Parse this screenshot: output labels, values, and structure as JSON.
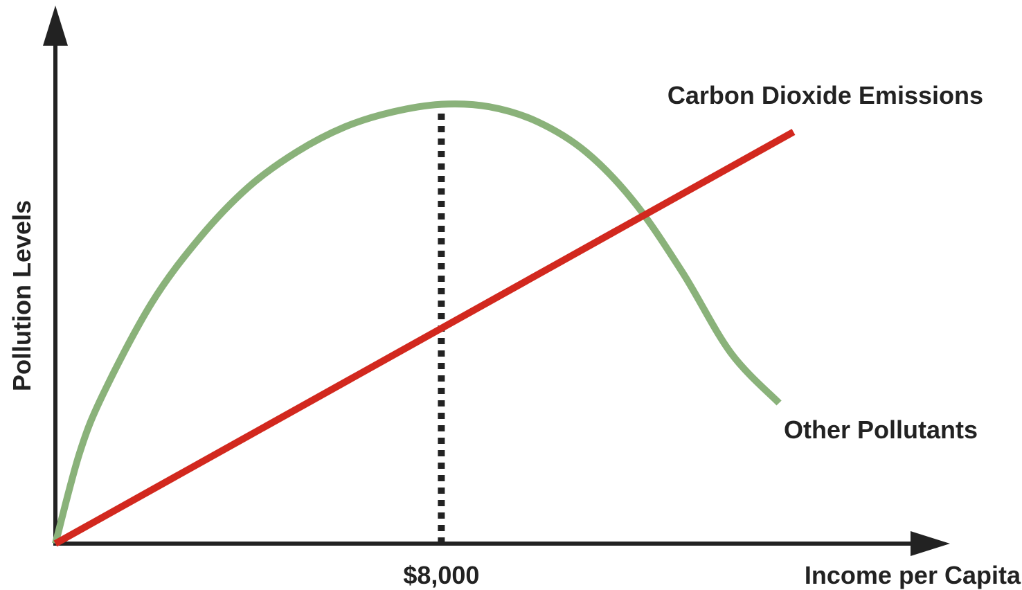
{
  "chart_data": {
    "type": "line",
    "title": "",
    "xlabel": "Income per Capita",
    "ylabel": "Pollution Levels",
    "x_tick_labels": [
      {
        "value": 8000,
        "label": "$8,000"
      }
    ],
    "xlim": [
      0,
      15300
    ],
    "ylim": [
      0,
      10
    ],
    "grid": false,
    "legend": "direct labels on lines",
    "reference_line": {
      "x": 8000,
      "style": "dotted",
      "color": "#222222"
    },
    "series": [
      {
        "name": "Carbon Dioxide Emissions",
        "color": "#d2281e",
        "x": [
          0,
          15300
        ],
        "y": [
          0,
          8.2
        ]
      },
      {
        "name": "Other Pollutants",
        "color": "#8ab27a",
        "x": [
          0,
          500,
          1000,
          2000,
          3000,
          4000,
          5000,
          6000,
          7000,
          8000,
          9000,
          10000,
          11000,
          12000,
          13000,
          14000,
          15000
        ],
        "y": [
          0,
          1.8,
          3.0,
          4.8,
          6.1,
          7.1,
          7.8,
          8.3,
          8.6,
          8.75,
          8.7,
          8.4,
          7.8,
          6.8,
          5.4,
          3.8,
          2.8
        ]
      }
    ]
  }
}
